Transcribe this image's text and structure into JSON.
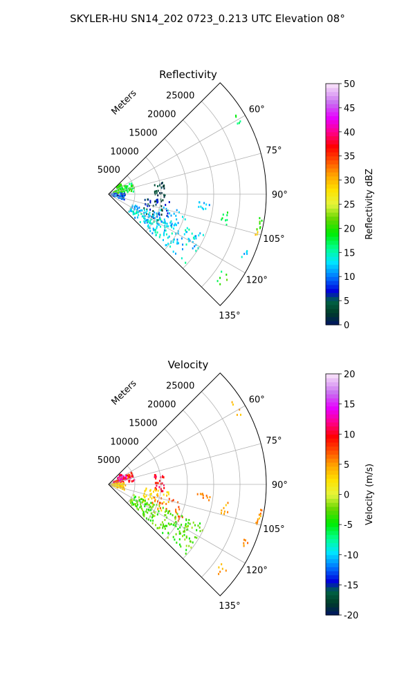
{
  "figure": {
    "suptitle": "SKYLER-HU  SN14_202  0723_0.213 UTC Elevation 08°"
  },
  "chart_data": [
    {
      "type": "polar-scatter",
      "title": "Reflectivity",
      "radial_label": "Meters",
      "r_ticks": [
        "5000",
        "10000",
        "15000",
        "20000",
        "25000"
      ],
      "r_tick_values": [
        5000,
        10000,
        15000,
        20000,
        25000
      ],
      "r_max": 30000,
      "theta_range_deg": [
        45,
        135
      ],
      "theta_ticks": [
        "60°",
        "75°",
        "90°",
        "105°",
        "120°",
        "135°"
      ],
      "theta_tick_values": [
        60,
        75,
        90,
        105,
        120,
        135
      ],
      "grid": true,
      "colorbar": {
        "label": "Reflectivity dBZ",
        "min": 0,
        "max": 50,
        "ticks": [
          "0",
          "5",
          "10",
          "15",
          "20",
          "25",
          "30",
          "35",
          "40",
          "45",
          "50"
        ]
      },
      "clusters": [
        {
          "theta": [
            50,
            62
          ],
          "r": [
            2000,
            3000
          ],
          "v": [
            18,
            22
          ],
          "n": 25
        },
        {
          "theta": [
            62,
            84
          ],
          "r": [
            1000,
            5000
          ],
          "v": [
            16,
            22
          ],
          "n": 70
        },
        {
          "theta": [
            86,
            110
          ],
          "r": [
            300,
            3200
          ],
          "v": [
            5,
            12
          ],
          "n": 90
        },
        {
          "theta": [
            78,
            100
          ],
          "r": [
            8800,
            10800
          ],
          "v": [
            0,
            6
          ],
          "n": 30
        },
        {
          "theta": [
            96,
            118
          ],
          "r": [
            7000,
            12000
          ],
          "v": [
            2,
            8
          ],
          "n": 40
        },
        {
          "theta": [
            103,
            118
          ],
          "r": [
            9000,
            15500
          ],
          "v": [
            10,
            14
          ],
          "n": 30
        },
        {
          "theta": [
            113,
            132
          ],
          "r": [
            5000,
            20000
          ],
          "v": [
            10,
            16
          ],
          "n": 180
        },
        {
          "theta": [
            95,
            99
          ],
          "r": [
            17000,
            19500
          ],
          "v": [
            10,
            14
          ],
          "n": 10
        },
        {
          "theta": [
            98,
            105
          ],
          "r": [
            22000,
            23500
          ],
          "v": [
            16,
            20
          ],
          "n": 8
        },
        {
          "theta": [
            56,
            63
          ],
          "r": [
            27500,
            28700
          ],
          "v": [
            15,
            19
          ],
          "n": 5
        },
        {
          "theta": [
            99,
            104
          ],
          "r": [
            29000,
            29600
          ],
          "v": [
            18,
            22
          ],
          "n": 8
        },
        {
          "theta": [
            104,
            106
          ],
          "r": [
            28900,
            29300
          ],
          "v": [
            27,
            30
          ],
          "n": 3
        },
        {
          "theta": [
            112,
            116
          ],
          "r": [
            27800,
            28800
          ],
          "v": [
            10,
            16
          ],
          "n": 6
        },
        {
          "theta": [
            124,
            130
          ],
          "r": [
            26000,
            28000
          ],
          "v": [
            16,
            22
          ],
          "n": 6
        }
      ]
    },
    {
      "type": "polar-scatter",
      "title": "Velocity",
      "radial_label": "Meters",
      "r_ticks": [
        "5000",
        "10000",
        "15000",
        "20000",
        "25000"
      ],
      "r_tick_values": [
        5000,
        10000,
        15000,
        20000,
        25000
      ],
      "r_max": 30000,
      "theta_range_deg": [
        45,
        135
      ],
      "theta_ticks": [
        "60°",
        "75°",
        "90°",
        "105°",
        "120°",
        "135°"
      ],
      "theta_tick_values": [
        60,
        75,
        90,
        105,
        120,
        135
      ],
      "grid": true,
      "colorbar": {
        "label": "Velocity (m/s)",
        "min": -20,
        "max": 20,
        "ticks": [
          "-20",
          "-15",
          "-10",
          "-5",
          "0",
          "5",
          "10",
          "15",
          "20"
        ]
      },
      "clusters": [
        {
          "theta": [
            50,
            62
          ],
          "r": [
            2000,
            3200
          ],
          "v": [
            8,
            16
          ],
          "n": 25
        },
        {
          "theta": [
            62,
            84
          ],
          "r": [
            1000,
            5000
          ],
          "v": [
            6,
            14
          ],
          "n": 70
        },
        {
          "theta": [
            86,
            110
          ],
          "r": [
            300,
            3200
          ],
          "v": [
            1,
            5
          ],
          "n": 90
        },
        {
          "theta": [
            78,
            100
          ],
          "r": [
            8800,
            10800
          ],
          "v": [
            8,
            12
          ],
          "n": 30
        },
        {
          "theta": [
            96,
            118
          ],
          "r": [
            7000,
            12000
          ],
          "v": [
            1,
            4
          ],
          "n": 40
        },
        {
          "theta": [
            103,
            118
          ],
          "r": [
            9000,
            15500
          ],
          "v": [
            5,
            8
          ],
          "n": 30
        },
        {
          "theta": [
            113,
            132
          ],
          "r": [
            5000,
            20000
          ],
          "v": [
            -5,
            -1
          ],
          "n": 180
        },
        {
          "theta": [
            95,
            99
          ],
          "r": [
            17000,
            19500
          ],
          "v": [
            5,
            7
          ],
          "n": 10
        },
        {
          "theta": [
            98,
            105
          ],
          "r": [
            22000,
            23500
          ],
          "v": [
            3,
            6
          ],
          "n": 8
        },
        {
          "theta": [
            56,
            63
          ],
          "r": [
            27500,
            28700
          ],
          "v": [
            3,
            6
          ],
          "n": 5
        },
        {
          "theta": [
            99,
            104
          ],
          "r": [
            29000,
            29600
          ],
          "v": [
            3,
            7
          ],
          "n": 8
        },
        {
          "theta": [
            104,
            106
          ],
          "r": [
            28900,
            29300
          ],
          "v": [
            5,
            7
          ],
          "n": 3
        },
        {
          "theta": [
            112,
            116
          ],
          "r": [
            27800,
            28800
          ],
          "v": [
            4,
            7
          ],
          "n": 6
        },
        {
          "theta": [
            124,
            130
          ],
          "r": [
            26000,
            28000
          ],
          "v": [
            3,
            6
          ],
          "n": 6
        }
      ]
    }
  ]
}
